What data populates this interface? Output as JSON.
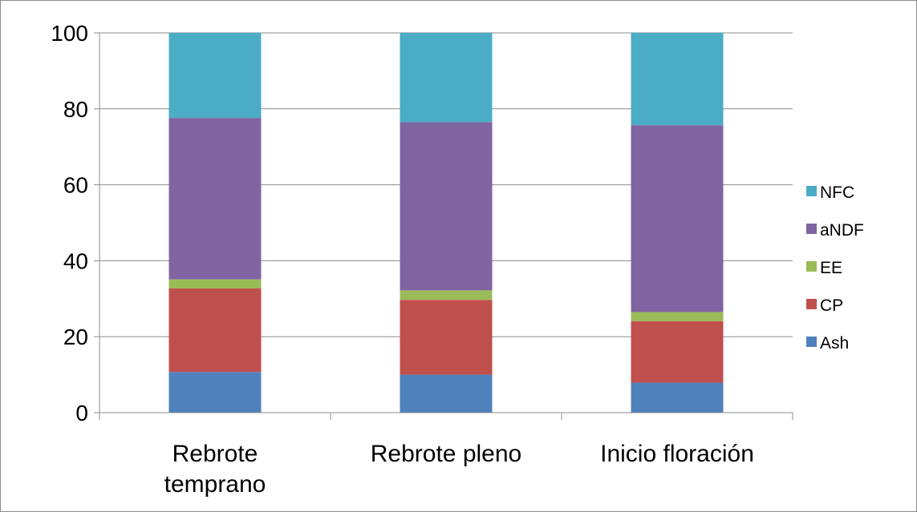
{
  "chart_data": {
    "type": "bar",
    "stacked": true,
    "categories": [
      [
        "Rebrote",
        "temprano"
      ],
      [
        "Rebrote pleno"
      ],
      [
        "Inicio floración"
      ]
    ],
    "series": [
      {
        "name": "Ash",
        "color": "#4f81bd",
        "values": [
          10.7,
          10.0,
          7.9
        ]
      },
      {
        "name": "CP",
        "color": "#c0504d",
        "values": [
          22.0,
          19.7,
          16.2
        ]
      },
      {
        "name": "EE",
        "color": "#9bbb59",
        "values": [
          2.4,
          2.5,
          2.4
        ]
      },
      {
        "name": "aNDF",
        "color": "#8064a2",
        "values": [
          42.5,
          44.3,
          49.2
        ]
      },
      {
        "name": "NFC",
        "color": "#4bacc6",
        "values": [
          22.4,
          23.5,
          24.3
        ]
      }
    ],
    "ylim": [
      0,
      100
    ],
    "yticks": [
      "0",
      "20",
      "40",
      "60",
      "80",
      "100"
    ],
    "grid": true,
    "legend_position": "right"
  }
}
